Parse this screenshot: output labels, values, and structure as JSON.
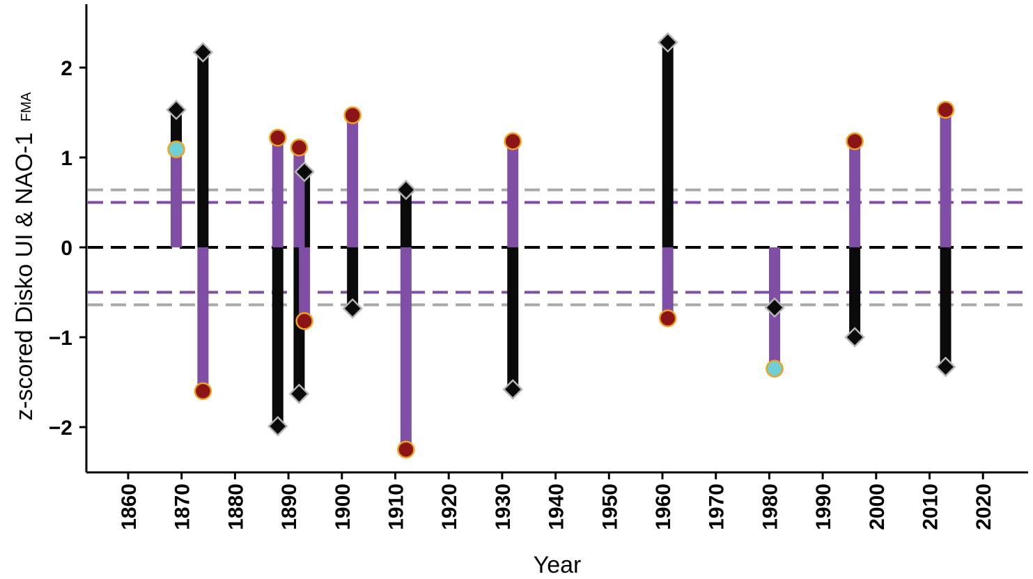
{
  "chart_data": {
    "type": "line",
    "xlabel": "Year",
    "ylabel": "z-scored Disko UI & NAO-1",
    "ylabel_subscript": "FMA",
    "xlim": [
      1852,
      2028
    ],
    "ylim": [
      -2.5,
      2.7
    ],
    "x_ticks": [
      1860,
      1870,
      1880,
      1890,
      1900,
      1910,
      1920,
      1930,
      1940,
      1950,
      1960,
      1970,
      1980,
      1990,
      2000,
      2010,
      2020
    ],
    "y_ticks": [
      2,
      1,
      0,
      -1,
      -2
    ],
    "y_tick_labels": [
      "2",
      "1",
      "0",
      "−1",
      "−2"
    ],
    "grid": false,
    "reference_lines": [
      {
        "y": 0,
        "color": "#000000",
        "dashed": true
      },
      {
        "y": 0.5,
        "color": "#7f4fa6",
        "dashed": true
      },
      {
        "y": -0.5,
        "color": "#7f4fa6",
        "dashed": true
      },
      {
        "y": 0.64,
        "color": "#a8a8a8",
        "dashed": true
      },
      {
        "y": -0.64,
        "color": "#a8a8a8",
        "dashed": true
      }
    ],
    "series": [
      {
        "marker": "diamond",
        "bar_color": "#0a0a0a",
        "points": [
          {
            "x": 1869,
            "y": 1.53
          },
          {
            "x": 1874,
            "y": 2.17
          },
          {
            "x": 1888,
            "y": -1.99
          },
          {
            "x": 1892,
            "y": -1.63
          },
          {
            "x": 1893,
            "y": 0.84
          },
          {
            "x": 1902,
            "y": -0.68
          },
          {
            "x": 1912,
            "y": 0.64
          },
          {
            "x": 1932,
            "y": -1.58
          },
          {
            "x": 1961,
            "y": 2.28
          },
          {
            "x": 1981,
            "y": -0.67
          },
          {
            "x": 1996,
            "y": -1.0
          },
          {
            "x": 2013,
            "y": -1.33
          }
        ]
      },
      {
        "marker": "circle",
        "bar_color": "#7f4fa6",
        "points": [
          {
            "x": 1869,
            "y": 1.09,
            "fill": "#6fcfd6"
          },
          {
            "x": 1874,
            "y": -1.6,
            "fill": "#8b1414"
          },
          {
            "x": 1888,
            "y": 1.22,
            "fill": "#8b1414"
          },
          {
            "x": 1892,
            "y": 1.11,
            "fill": "#8b1414"
          },
          {
            "x": 1893,
            "y": -0.82,
            "fill": "#8b1414"
          },
          {
            "x": 1902,
            "y": 1.47,
            "fill": "#8b1414"
          },
          {
            "x": 1912,
            "y": -2.25,
            "fill": "#8b1414"
          },
          {
            "x": 1932,
            "y": 1.18,
            "fill": "#8b1414"
          },
          {
            "x": 1961,
            "y": -0.79,
            "fill": "#8b1414"
          },
          {
            "x": 1981,
            "y": -1.35,
            "fill": "#6fcfd6"
          },
          {
            "x": 1996,
            "y": 1.18,
            "fill": "#8b1414"
          },
          {
            "x": 2013,
            "y": 1.53,
            "fill": "#8b1414"
          }
        ]
      }
    ]
  }
}
